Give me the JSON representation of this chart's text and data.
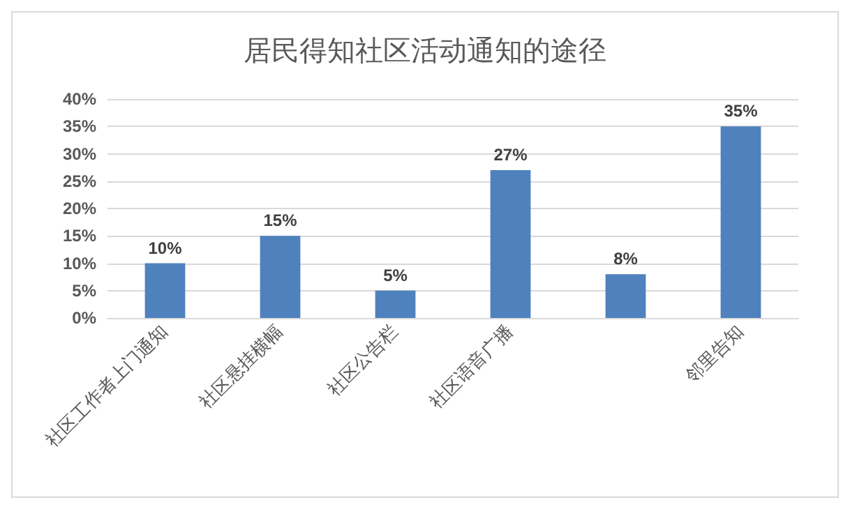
{
  "chart_data": {
    "type": "bar",
    "title": "居民得知社区活动通知的途径",
    "categories": [
      "社区工作者上门通知",
      "社区悬挂横幅",
      "社区公告栏",
      "社区语音广播",
      null,
      "邻里告知"
    ],
    "values": [
      10,
      15,
      5,
      27,
      8,
      35
    ],
    "value_labels": [
      "10%",
      "15%",
      "5%",
      "27%",
      "8%",
      "35%"
    ],
    "color": "#4f81bd",
    "ylim": [
      0,
      40
    ],
    "yticks": [
      {
        "value": 0,
        "label": "0%"
      },
      {
        "value": 5,
        "label": "5%"
      },
      {
        "value": 10,
        "label": "10%"
      },
      {
        "value": 15,
        "label": "15%"
      },
      {
        "value": 20,
        "label": "20%"
      },
      {
        "value": 25,
        "label": "25%"
      },
      {
        "value": 30,
        "label": "30%"
      },
      {
        "value": 35,
        "label": "35%"
      },
      {
        "value": 40,
        "label": "40%"
      }
    ],
    "grid": "y"
  }
}
